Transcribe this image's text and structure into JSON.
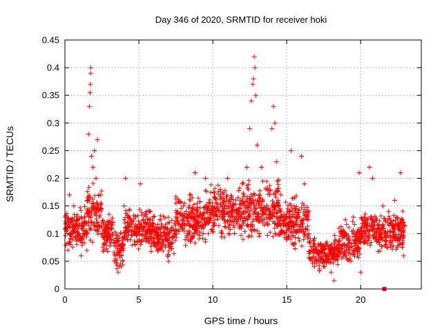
{
  "chart_data": {
    "type": "scatter",
    "title": "Day 346 of 2020, SRMTID for receiver hoki",
    "xlabel": "GPS time / hours",
    "ylabel": "SRMTID / TECUs",
    "xlim": [
      0,
      24.1
    ],
    "ylim": [
      0,
      0.45
    ],
    "xticks": [
      0,
      5,
      10,
      15,
      20
    ],
    "xtick_labels": [
      "0",
      "5",
      "10",
      "15",
      "20"
    ],
    "yticks": [
      0,
      0.05,
      0.1,
      0.15,
      0.2,
      0.25,
      0.3,
      0.35,
      0.4,
      0.45
    ],
    "ytick_labels": [
      "0",
      "0.05",
      "0.1",
      "0.15",
      "0.2",
      "0.25",
      "0.3",
      "0.35",
      "0.4",
      "0.45"
    ],
    "grid": true,
    "marker": "+",
    "series_color": "#ff0000",
    "highlighted_points": [
      {
        "x": 0.1,
        "y": 0.13
      },
      {
        "x": 0.2,
        "y": 0.07
      },
      {
        "x": 0.3,
        "y": 0.17
      },
      {
        "x": 0.4,
        "y": 0.12
      },
      {
        "x": 0.6,
        "y": 0.15
      },
      {
        "x": 0.9,
        "y": 0.1
      },
      {
        "x": 1.1,
        "y": 0.06
      },
      {
        "x": 1.3,
        "y": 0.12
      },
      {
        "x": 1.5,
        "y": 0.16
      },
      {
        "x": 1.6,
        "y": 0.28
      },
      {
        "x": 1.65,
        "y": 0.33
      },
      {
        "x": 1.7,
        "y": 0.355
      },
      {
        "x": 1.72,
        "y": 0.37
      },
      {
        "x": 1.74,
        "y": 0.39
      },
      {
        "x": 1.75,
        "y": 0.4
      },
      {
        "x": 1.8,
        "y": 0.24
      },
      {
        "x": 1.9,
        "y": 0.22
      },
      {
        "x": 2.0,
        "y": 0.25
      },
      {
        "x": 2.1,
        "y": 0.2
      },
      {
        "x": 2.2,
        "y": 0.27
      },
      {
        "x": 2.3,
        "y": 0.17
      },
      {
        "x": 2.6,
        "y": 0.12
      },
      {
        "x": 3.0,
        "y": 0.1
      },
      {
        "x": 3.4,
        "y": 0.06
      },
      {
        "x": 3.6,
        "y": 0.03
      },
      {
        "x": 3.8,
        "y": 0.04
      },
      {
        "x": 4.0,
        "y": 0.15
      },
      {
        "x": 4.1,
        "y": 0.2
      },
      {
        "x": 4.5,
        "y": 0.12
      },
      {
        "x": 5.0,
        "y": 0.1
      },
      {
        "x": 5.1,
        "y": 0.19
      },
      {
        "x": 5.5,
        "y": 0.14
      },
      {
        "x": 6.0,
        "y": 0.08
      },
      {
        "x": 6.5,
        "y": 0.11
      },
      {
        "x": 7.0,
        "y": 0.05
      },
      {
        "x": 7.5,
        "y": 0.13
      },
      {
        "x": 8.0,
        "y": 0.15
      },
      {
        "x": 8.5,
        "y": 0.17
      },
      {
        "x": 8.8,
        "y": 0.21
      },
      {
        "x": 9.0,
        "y": 0.12
      },
      {
        "x": 9.5,
        "y": 0.2
      },
      {
        "x": 10.0,
        "y": 0.15
      },
      {
        "x": 10.5,
        "y": 0.18
      },
      {
        "x": 11.0,
        "y": 0.2
      },
      {
        "x": 11.5,
        "y": 0.13
      },
      {
        "x": 12.0,
        "y": 0.19
      },
      {
        "x": 12.3,
        "y": 0.22
      },
      {
        "x": 12.5,
        "y": 0.29
      },
      {
        "x": 12.6,
        "y": 0.34
      },
      {
        "x": 12.7,
        "y": 0.37
      },
      {
        "x": 12.75,
        "y": 0.38
      },
      {
        "x": 12.8,
        "y": 0.42
      },
      {
        "x": 12.85,
        "y": 0.4
      },
      {
        "x": 12.9,
        "y": 0.35
      },
      {
        "x": 13.0,
        "y": 0.26
      },
      {
        "x": 13.3,
        "y": 0.22
      },
      {
        "x": 13.6,
        "y": 0.18
      },
      {
        "x": 14.0,
        "y": 0.29
      },
      {
        "x": 14.1,
        "y": 0.33
      },
      {
        "x": 14.2,
        "y": 0.3
      },
      {
        "x": 14.3,
        "y": 0.23
      },
      {
        "x": 14.6,
        "y": 0.14
      },
      {
        "x": 15.0,
        "y": 0.12
      },
      {
        "x": 15.3,
        "y": 0.25
      },
      {
        "x": 15.5,
        "y": 0.15
      },
      {
        "x": 16.0,
        "y": 0.24
      },
      {
        "x": 16.2,
        "y": 0.19
      },
      {
        "x": 16.5,
        "y": 0.1
      },
      {
        "x": 17.0,
        "y": 0.07
      },
      {
        "x": 17.5,
        "y": 0.04
      },
      {
        "x": 18.0,
        "y": 0.03
      },
      {
        "x": 18.2,
        "y": 0.015
      },
      {
        "x": 18.5,
        "y": 0.06
      },
      {
        "x": 19.0,
        "y": 0.1
      },
      {
        "x": 19.5,
        "y": 0.13
      },
      {
        "x": 19.9,
        "y": 0.21
      },
      {
        "x": 20.0,
        "y": 0.03
      },
      {
        "x": 20.3,
        "y": 0.12
      },
      {
        "x": 20.6,
        "y": 0.22
      },
      {
        "x": 20.8,
        "y": 0.2
      },
      {
        "x": 21.0,
        "y": 0.09
      },
      {
        "x": 21.5,
        "y": 0.15
      },
      {
        "x": 22.0,
        "y": 0.08
      },
      {
        "x": 22.3,
        "y": 0.16
      },
      {
        "x": 22.7,
        "y": 0.21
      },
      {
        "x": 22.9,
        "y": 0.06
      }
    ],
    "dense_band": {
      "x_range": [
        0,
        23.0
      ],
      "segments": [
        {
          "x0": 0.0,
          "x1": 1.5,
          "y_low": 0.06,
          "y_high": 0.16
        },
        {
          "x0": 1.5,
          "x1": 2.5,
          "y_low": 0.07,
          "y_high": 0.2
        },
        {
          "x0": 2.5,
          "x1": 3.3,
          "y_low": 0.06,
          "y_high": 0.14
        },
        {
          "x0": 3.3,
          "x1": 4.0,
          "y_low": 0.03,
          "y_high": 0.12
        },
        {
          "x0": 4.0,
          "x1": 6.0,
          "y_low": 0.06,
          "y_high": 0.16
        },
        {
          "x0": 6.0,
          "x1": 7.5,
          "y_low": 0.05,
          "y_high": 0.14
        },
        {
          "x0": 7.5,
          "x1": 9.5,
          "y_low": 0.07,
          "y_high": 0.18
        },
        {
          "x0": 9.5,
          "x1": 12.0,
          "y_low": 0.08,
          "y_high": 0.2
        },
        {
          "x0": 12.0,
          "x1": 14.5,
          "y_low": 0.08,
          "y_high": 0.21
        },
        {
          "x0": 14.5,
          "x1": 16.5,
          "y_low": 0.06,
          "y_high": 0.18
        },
        {
          "x0": 16.5,
          "x1": 18.5,
          "y_low": 0.03,
          "y_high": 0.1
        },
        {
          "x0": 18.5,
          "x1": 20.0,
          "y_low": 0.04,
          "y_high": 0.13
        },
        {
          "x0": 20.0,
          "x1": 21.5,
          "y_low": 0.06,
          "y_high": 0.15
        },
        {
          "x0": 21.5,
          "x1": 23.0,
          "y_low": 0.06,
          "y_high": 0.15
        }
      ]
    },
    "special_marker": {
      "x": 21.6,
      "y": 0.0,
      "shape": "square"
    }
  }
}
